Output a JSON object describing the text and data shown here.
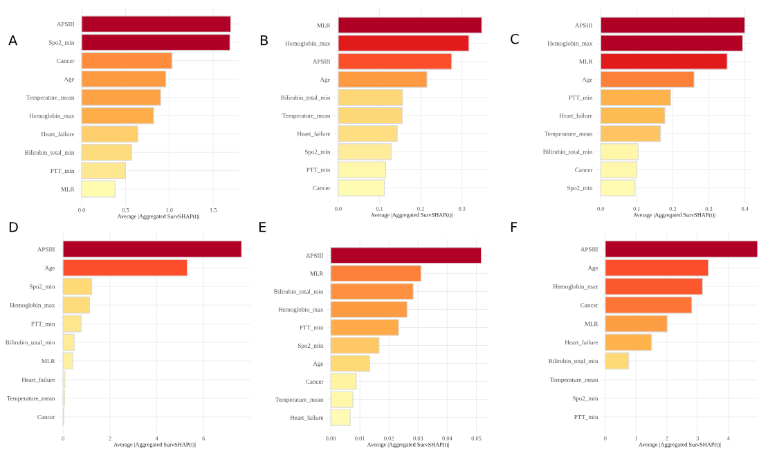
{
  "chart_data": [
    {
      "type": "bar",
      "orientation": "horizontal",
      "title": "A",
      "xlabel": "Average |Aggregated SurvSHAP(t)|",
      "grid": true,
      "legend": false,
      "categories": [
        "APSIII",
        "Spo2_min",
        "Cancer",
        "Age",
        "Temperature_mean",
        "Hemoglobin_max",
        "Heart_failure",
        "Bilirubin_total_min",
        "PTT_min",
        "MLR"
      ],
      "values": [
        1.7,
        1.69,
        1.03,
        0.96,
        0.9,
        0.82,
        0.64,
        0.57,
        0.5,
        0.38
      ],
      "colors": [
        "#b10026",
        "#b10026",
        "#fd8d3c",
        "#fd9a42",
        "#fda245",
        "#feac4a",
        "#fecf6c",
        "#fedc7e",
        "#fee791",
        "#fffcb0"
      ],
      "xlim": [
        -0.04,
        1.79
      ],
      "xticks": [
        {
          "value": 0,
          "label": "0.0"
        },
        {
          "value": 0.5,
          "label": "0.5"
        },
        {
          "value": 1.0,
          "label": "1.0"
        },
        {
          "value": 1.5,
          "label": "1.5"
        }
      ]
    },
    {
      "type": "bar",
      "orientation": "horizontal",
      "title": "B",
      "xlabel": "Average |Aggregated SurvSHAP(t)|",
      "grid": true,
      "legend": false,
      "categories": [
        "MLR",
        "Hemoglobin_max",
        "APSIII",
        "Age",
        "Bilirubin_total_min",
        "Temperature_mean",
        "Heart_failure",
        "Spo2_min",
        "PTT_min",
        "Cancer"
      ],
      "values": [
        0.348,
        0.317,
        0.275,
        0.215,
        0.156,
        0.155,
        0.143,
        0.128,
        0.115,
        0.112
      ],
      "colors": [
        "#b10026",
        "#e31a1c",
        "#fc4e2a",
        "#fd9a42",
        "#fed776",
        "#fed776",
        "#fede80",
        "#feec98",
        "#fff7ac",
        "#fffbb0"
      ],
      "xlim": [
        -0.01,
        0.366
      ],
      "xticks": [
        {
          "value": 0,
          "label": "0.0"
        },
        {
          "value": 0.1,
          "label": "0.1"
        },
        {
          "value": 0.2,
          "label": "0.2"
        },
        {
          "value": 0.3,
          "label": "0.3"
        }
      ]
    },
    {
      "type": "bar",
      "orientation": "horizontal",
      "title": "C",
      "xlabel": "Average |Aggregated SurvSHAP(t)|",
      "grid": true,
      "legend": false,
      "categories": [
        "APSIII",
        "Hemoglobin_max",
        "MLR",
        "Age",
        "PTT_min",
        "Heart_failure",
        "Temperature_mean",
        "Bilirubin_total_min",
        "Cancer",
        "Spo2_min"
      ],
      "values": [
        0.4,
        0.394,
        0.351,
        0.259,
        0.194,
        0.178,
        0.166,
        0.104,
        0.1,
        0.095
      ],
      "colors": [
        "#b10026",
        "#b50026",
        "#e31a1c",
        "#fd8039",
        "#feb24c",
        "#febb52",
        "#fec461",
        "#fff6a8",
        "#fff8ac",
        "#fffbb0"
      ],
      "xlim": [
        -0.012,
        0.42
      ],
      "xticks": [
        {
          "value": 0,
          "label": "0.0"
        },
        {
          "value": 0.1,
          "label": "0.1"
        },
        {
          "value": 0.2,
          "label": "0.2"
        },
        {
          "value": 0.3,
          "label": "0.3"
        },
        {
          "value": 0.4,
          "label": "0.4"
        }
      ]
    },
    {
      "type": "bar",
      "orientation": "horizontal",
      "title": "D",
      "xlabel": "Average |Aggregated SurvSHAP(t)|",
      "grid": true,
      "legend": false,
      "categories": [
        "APSIII",
        "Age",
        "Spo2_min",
        "Hemoglobin_max",
        "PTT_min",
        "Bilirubin_total_min",
        "MLR",
        "Heart_failure",
        "Temperature_mean",
        "Cancer"
      ],
      "values": [
        7.62,
        5.3,
        1.23,
        1.13,
        0.77,
        0.48,
        0.41,
        0.08,
        0.07,
        0.03
      ],
      "colors": [
        "#b10026",
        "#fc4e2a",
        "#fed976",
        "#fedb7a",
        "#fee68e",
        "#feec98",
        "#fef09e",
        "#fff5a8",
        "#fff5a8",
        "#fffab0"
      ],
      "xlim": [
        -0.18,
        8.0
      ],
      "xticks": [
        0,
        2,
        4,
        6
      ]
    },
    {
      "type": "bar",
      "orientation": "horizontal",
      "title": "E",
      "xlabel": "Average |Aggregated SurvSHAP(t)|",
      "grid": true,
      "legend": false,
      "categories": [
        "APSIII",
        "MLR",
        "Bilirubin_total_min",
        "Hemoglobin_max",
        "PTT_min",
        "Spo2_min",
        "Age",
        "Cancer",
        "Temperature_mean",
        "Heart_failure"
      ],
      "values": [
        0.0517,
        0.031,
        0.0283,
        0.0262,
        0.0233,
        0.0166,
        0.0134,
        0.0088,
        0.0076,
        0.0067
      ],
      "colors": [
        "#b10026",
        "#fd8039",
        "#fd913f",
        "#fd9b43",
        "#feaa49",
        "#fec965",
        "#fed976",
        "#fff3a2",
        "#fff7aa",
        "#fffbb2"
      ],
      "xlim": [
        -0.0012,
        0.0544
      ],
      "xticks": [
        {
          "value": 0,
          "label": "0.00"
        },
        {
          "value": 0.01,
          "label": "0.01"
        },
        {
          "value": 0.02,
          "label": "0.02"
        },
        {
          "value": 0.03,
          "label": "0.03"
        },
        {
          "value": 0.04,
          "label": "0.04"
        },
        {
          "value": 0.05,
          "label": "0.05"
        }
      ]
    },
    {
      "type": "bar",
      "orientation": "horizontal",
      "title": "F",
      "xlabel": "Average |Aggregated SurvSHAP(t)|",
      "grid": true,
      "legend": false,
      "categories": [
        "APSIII",
        "Age",
        "Hemoglobin_max",
        "Cancer",
        "MLR",
        "Heart_failure",
        "Bilirubin_total_min",
        "Temperature_mean",
        "Spo2_min",
        "PTT_min"
      ],
      "values": [
        4.95,
        3.35,
        3.16,
        2.81,
        2.01,
        1.5,
        0.76,
        0,
        0,
        0
      ],
      "colors": [
        "#b10026",
        "#fc4e2a",
        "#fc582d",
        "#fd7434",
        "#fd9e44",
        "#feb24c",
        "#fed976",
        "#ffffcc",
        "#ffffcc",
        "#ffffcc"
      ],
      "xlim": [
        -0.11,
        4.95
      ],
      "xticks": [
        0,
        1,
        2,
        3,
        4
      ]
    }
  ]
}
